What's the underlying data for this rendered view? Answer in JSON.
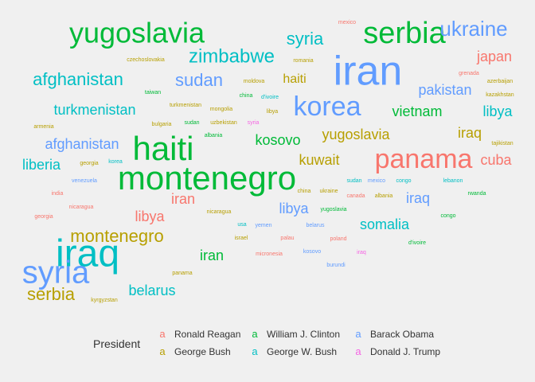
{
  "chart_data": {
    "type": "wordcloud",
    "legend": {
      "title": "President",
      "placement": "bottom",
      "key_glyph": "a",
      "entries": [
        {
          "name": "Ronald Reagan",
          "color": "#F8766D"
        },
        {
          "name": "George Bush",
          "color": "#B79F00"
        },
        {
          "name": "William J. Clinton",
          "color": "#00BA38"
        },
        {
          "name": "George W. Bush",
          "color": "#00BFC4"
        },
        {
          "name": "Barack Obama",
          "color": "#619CFF"
        },
        {
          "name": "Donald J. Trump",
          "color": "#F564E3"
        }
      ]
    },
    "words": [
      {
        "text": "yugoslavia",
        "president": "William J. Clinton",
        "size": 36
      },
      {
        "text": "serbia",
        "president": "William J. Clinton",
        "size": 38
      },
      {
        "text": "ukraine",
        "president": "Barack Obama",
        "size": 26
      },
      {
        "text": "iran",
        "president": "Barack Obama",
        "size": 52
      },
      {
        "text": "iraq",
        "president": "George W. Bush",
        "size": 48
      },
      {
        "text": "syria",
        "president": "Barack Obama",
        "size": 40
      },
      {
        "text": "haiti",
        "president": "William J. Clinton",
        "size": 42
      },
      {
        "text": "montenegro",
        "president": "William J. Clinton",
        "size": 42
      },
      {
        "text": "panama",
        "president": "Ronald Reagan",
        "size": 34
      },
      {
        "text": "korea",
        "president": "Barack Obama",
        "size": 34
      },
      {
        "text": "zimbabwe",
        "president": "George W. Bush",
        "size": 24
      },
      {
        "text": "syria",
        "president": "George W. Bush",
        "size": 22
      },
      {
        "text": "afghanistan",
        "president": "George W. Bush",
        "size": 22
      },
      {
        "text": "sudan",
        "president": "Barack Obama",
        "size": 22
      },
      {
        "text": "japan",
        "president": "Ronald Reagan",
        "size": 18
      },
      {
        "text": "haiti",
        "president": "George Bush",
        "size": 16
      },
      {
        "text": "pakistan",
        "president": "Barack Obama",
        "size": 18
      },
      {
        "text": "turkmenistan",
        "president": "George W. Bush",
        "size": 18
      },
      {
        "text": "vietnam",
        "president": "William J. Clinton",
        "size": 18
      },
      {
        "text": "libya",
        "president": "George W. Bush",
        "size": 18
      },
      {
        "text": "yugoslavia",
        "president": "George Bush",
        "size": 18
      },
      {
        "text": "iraq",
        "president": "George Bush",
        "size": 18
      },
      {
        "text": "afghanistan",
        "president": "Barack Obama",
        "size": 18
      },
      {
        "text": "kosovo",
        "president": "William J. Clinton",
        "size": 18
      },
      {
        "text": "kuwait",
        "president": "George Bush",
        "size": 18
      },
      {
        "text": "cuba",
        "president": "Ronald Reagan",
        "size": 18
      },
      {
        "text": "liberia",
        "president": "George W. Bush",
        "size": 18
      },
      {
        "text": "iran",
        "president": "Ronald Reagan",
        "size": 18
      },
      {
        "text": "libya",
        "president": "Barack Obama",
        "size": 18
      },
      {
        "text": "iraq",
        "president": "Barack Obama",
        "size": 18
      },
      {
        "text": "libya",
        "president": "Ronald Reagan",
        "size": 18
      },
      {
        "text": "somalia",
        "president": "George W. Bush",
        "size": 18
      },
      {
        "text": "montenegro",
        "president": "George Bush",
        "size": 22
      },
      {
        "text": "iran",
        "president": "William J. Clinton",
        "size": 18
      },
      {
        "text": "serbia",
        "president": "George Bush",
        "size": 22
      },
      {
        "text": "belarus",
        "president": "George W. Bush",
        "size": 18
      },
      {
        "text": "mexico",
        "president": "Ronald Reagan",
        "size": 7
      },
      {
        "text": "czechoslovakia",
        "president": "George Bush",
        "size": 7
      },
      {
        "text": "romania",
        "president": "George Bush",
        "size": 7
      },
      {
        "text": "grenada",
        "president": "Ronald Reagan",
        "size": 7
      },
      {
        "text": "azerbaijan",
        "president": "George Bush",
        "size": 7
      },
      {
        "text": "moldova",
        "president": "George Bush",
        "size": 7
      },
      {
        "text": "kazakhstan",
        "president": "George Bush",
        "size": 7
      },
      {
        "text": "taiwan",
        "president": "William J. Clinton",
        "size": 7
      },
      {
        "text": "china",
        "president": "William J. Clinton",
        "size": 7
      },
      {
        "text": "d'ivoire",
        "president": "George W. Bush",
        "size": 7
      },
      {
        "text": "turkmenistan",
        "president": "George Bush",
        "size": 7
      },
      {
        "text": "mongolia",
        "president": "George Bush",
        "size": 7
      },
      {
        "text": "libya",
        "president": "George Bush",
        "size": 7
      },
      {
        "text": "armenia",
        "president": "George Bush",
        "size": 7
      },
      {
        "text": "bulgaria",
        "president": "George Bush",
        "size": 7
      },
      {
        "text": "sudan",
        "president": "William J. Clinton",
        "size": 7
      },
      {
        "text": "uzbekistan",
        "president": "George Bush",
        "size": 7
      },
      {
        "text": "syria",
        "president": "Donald J. Trump",
        "size": 7
      },
      {
        "text": "albania",
        "president": "William J. Clinton",
        "size": 7
      },
      {
        "text": "tajikistan",
        "president": "George Bush",
        "size": 7
      },
      {
        "text": "georgia",
        "president": "George Bush",
        "size": 7
      },
      {
        "text": "korea",
        "president": "George W. Bush",
        "size": 7
      },
      {
        "text": "venezuela",
        "president": "Barack Obama",
        "size": 7
      },
      {
        "text": "sudan",
        "president": "George W. Bush",
        "size": 7
      },
      {
        "text": "mexico",
        "president": "Barack Obama",
        "size": 7
      },
      {
        "text": "congo",
        "president": "George W. Bush",
        "size": 7
      },
      {
        "text": "lebanon",
        "president": "George W. Bush",
        "size": 7
      },
      {
        "text": "india",
        "president": "Ronald Reagan",
        "size": 7
      },
      {
        "text": "china",
        "president": "George Bush",
        "size": 7
      },
      {
        "text": "ukraine",
        "president": "George Bush",
        "size": 7
      },
      {
        "text": "canada",
        "president": "Ronald Reagan",
        "size": 7
      },
      {
        "text": "albania",
        "president": "George Bush",
        "size": 7
      },
      {
        "text": "rwanda",
        "president": "William J. Clinton",
        "size": 7
      },
      {
        "text": "nicaragua",
        "president": "Ronald Reagan",
        "size": 7
      },
      {
        "text": "nicaragua",
        "president": "George Bush",
        "size": 7
      },
      {
        "text": "yugoslavia",
        "president": "William J. Clinton",
        "size": 7
      },
      {
        "text": "congo",
        "president": "William J. Clinton",
        "size": 7
      },
      {
        "text": "georgia",
        "president": "Ronald Reagan",
        "size": 7
      },
      {
        "text": "usa",
        "president": "George W. Bush",
        "size": 7
      },
      {
        "text": "yemen",
        "president": "Barack Obama",
        "size": 7
      },
      {
        "text": "belarus",
        "president": "Barack Obama",
        "size": 7
      },
      {
        "text": "israel",
        "president": "George Bush",
        "size": 7
      },
      {
        "text": "palau",
        "president": "Ronald Reagan",
        "size": 7
      },
      {
        "text": "poland",
        "president": "Ronald Reagan",
        "size": 7
      },
      {
        "text": "d'ivoire",
        "president": "William J. Clinton",
        "size": 7
      },
      {
        "text": "micronesia",
        "president": "Ronald Reagan",
        "size": 7
      },
      {
        "text": "kosovo",
        "president": "Barack Obama",
        "size": 7
      },
      {
        "text": "iraq",
        "president": "Donald J. Trump",
        "size": 7
      },
      {
        "text": "burundi",
        "president": "Barack Obama",
        "size": 7
      },
      {
        "text": "panama",
        "president": "George Bush",
        "size": 7
      },
      {
        "text": "kyrgyzstan",
        "president": "George Bush",
        "size": 7
      }
    ]
  }
}
